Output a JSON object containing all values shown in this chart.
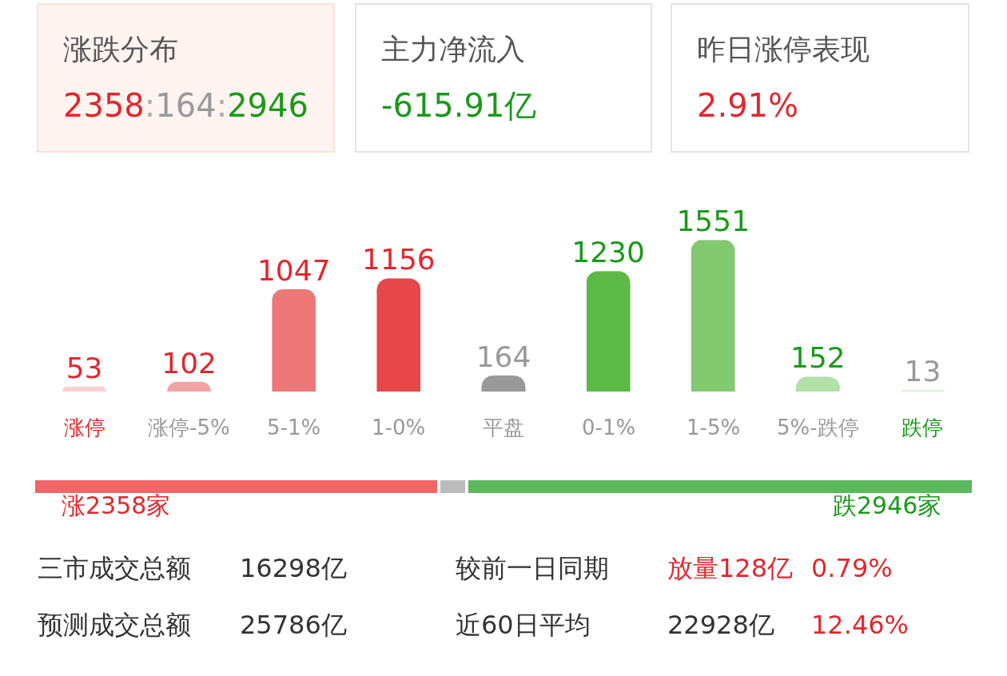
{
  "chart_data": [
    {
      "type": "other",
      "annotations": [
        "涨跌分布",
        "2358:164:2946",
        "主力净流入",
        "-615.91亿",
        "昨日涨停表现",
        "2.91%"
      ]
    },
    {
      "type": "bar",
      "categories": [
        "涨停",
        "涨停-5%",
        "5-1%",
        "1-0%",
        "平盘",
        "0-1%",
        "1-5%",
        "5%-跌停",
        "跌停"
      ],
      "values": [
        53,
        102,
        1047,
        1156,
        164,
        1230,
        1551,
        152,
        13
      ],
      "colors": [
        "#f9d0d0",
        "#f2a3a5",
        "#ee7777",
        "#e8474a",
        "#999999",
        "#5cb946",
        "#82c96f",
        "#b3e0a6",
        "#d9f0d3"
      ],
      "data_labels": true
    },
    {
      "type": "bar",
      "orientation": "horizontal",
      "stacked": true,
      "categories": [
        null
      ],
      "series": [
        {
          "color": "#f06565",
          "values": [
            2358
          ],
          "value_labels": [
            "涨2358家"
          ]
        },
        {
          "color": "#bbbbbb",
          "values": [
            164
          ]
        },
        {
          "color": "#5cb85c",
          "values": [
            2946
          ],
          "value_labels": [
            "跌2946家"
          ]
        }
      ]
    },
    {
      "type": "other",
      "annotations": [
        "三市成交总额",
        "16298亿",
        "较前一日同期",
        "放量128亿",
        "0.79%",
        "预测成交总额",
        "25786亿",
        "近60日平均",
        "22928亿",
        "12.46%"
      ]
    }
  ]
}
